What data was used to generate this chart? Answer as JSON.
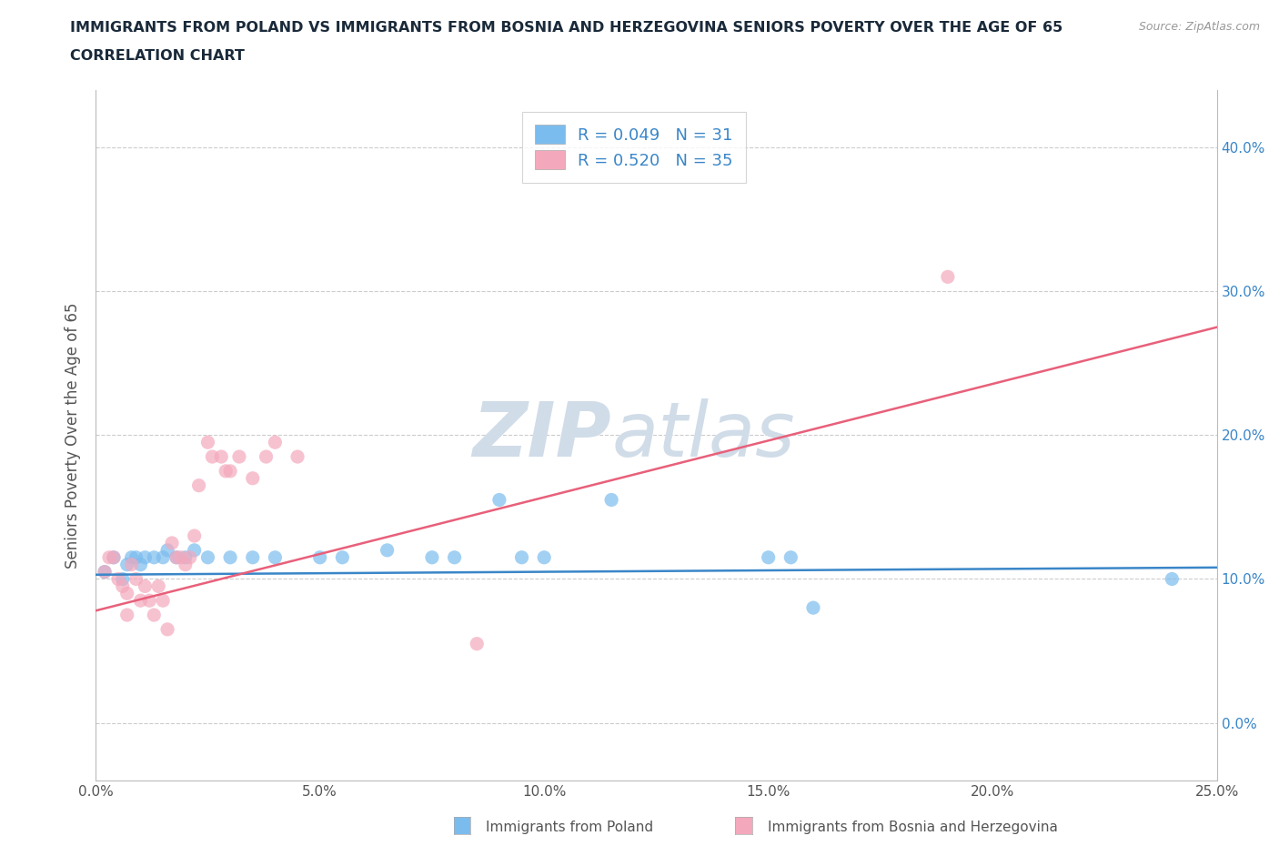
{
  "title_line1": "IMMIGRANTS FROM POLAND VS IMMIGRANTS FROM BOSNIA AND HERZEGOVINA SENIORS POVERTY OVER THE AGE OF 65",
  "title_line2": "CORRELATION CHART",
  "source": "Source: ZipAtlas.com",
  "ylabel": "Seniors Poverty Over the Age of 65",
  "xlim": [
    0.0,
    0.25
  ],
  "ylim": [
    -0.04,
    0.44
  ],
  "ytick_values": [
    0.0,
    0.1,
    0.2,
    0.3,
    0.4
  ],
  "ytick_labels": [
    "0.0%",
    "10.0%",
    "20.0%",
    "30.0%",
    "40.0%"
  ],
  "xtick_values": [
    0.0,
    0.05,
    0.1,
    0.15,
    0.2,
    0.25
  ],
  "xtick_labels": [
    "0.0%",
    "5.0%",
    "10.0%",
    "15.0%",
    "20.0%",
    "25.0%"
  ],
  "poland_color": "#7bbcee",
  "bosnia_color": "#f4a8bc",
  "poland_scatter": [
    [
      0.002,
      0.105
    ],
    [
      0.004,
      0.115
    ],
    [
      0.006,
      0.1
    ],
    [
      0.007,
      0.11
    ],
    [
      0.008,
      0.115
    ],
    [
      0.009,
      0.115
    ],
    [
      0.01,
      0.11
    ],
    [
      0.011,
      0.115
    ],
    [
      0.013,
      0.115
    ],
    [
      0.015,
      0.115
    ],
    [
      0.016,
      0.12
    ],
    [
      0.018,
      0.115
    ],
    [
      0.02,
      0.115
    ],
    [
      0.022,
      0.12
    ],
    [
      0.025,
      0.115
    ],
    [
      0.03,
      0.115
    ],
    [
      0.035,
      0.115
    ],
    [
      0.04,
      0.115
    ],
    [
      0.05,
      0.115
    ],
    [
      0.055,
      0.115
    ],
    [
      0.065,
      0.12
    ],
    [
      0.075,
      0.115
    ],
    [
      0.08,
      0.115
    ],
    [
      0.09,
      0.155
    ],
    [
      0.095,
      0.115
    ],
    [
      0.1,
      0.115
    ],
    [
      0.115,
      0.155
    ],
    [
      0.15,
      0.115
    ],
    [
      0.155,
      0.115
    ],
    [
      0.16,
      0.08
    ],
    [
      0.24,
      0.1
    ]
  ],
  "bosnia_scatter": [
    [
      0.002,
      0.105
    ],
    [
      0.003,
      0.115
    ],
    [
      0.004,
      0.115
    ],
    [
      0.005,
      0.1
    ],
    [
      0.006,
      0.095
    ],
    [
      0.007,
      0.09
    ],
    [
      0.007,
      0.075
    ],
    [
      0.008,
      0.11
    ],
    [
      0.009,
      0.1
    ],
    [
      0.01,
      0.085
    ],
    [
      0.011,
      0.095
    ],
    [
      0.012,
      0.085
    ],
    [
      0.013,
      0.075
    ],
    [
      0.014,
      0.095
    ],
    [
      0.015,
      0.085
    ],
    [
      0.016,
      0.065
    ],
    [
      0.017,
      0.125
    ],
    [
      0.018,
      0.115
    ],
    [
      0.019,
      0.115
    ],
    [
      0.02,
      0.11
    ],
    [
      0.021,
      0.115
    ],
    [
      0.022,
      0.13
    ],
    [
      0.023,
      0.165
    ],
    [
      0.025,
      0.195
    ],
    [
      0.026,
      0.185
    ],
    [
      0.028,
      0.185
    ],
    [
      0.029,
      0.175
    ],
    [
      0.03,
      0.175
    ],
    [
      0.032,
      0.185
    ],
    [
      0.035,
      0.17
    ],
    [
      0.038,
      0.185
    ],
    [
      0.04,
      0.195
    ],
    [
      0.045,
      0.185
    ],
    [
      0.19,
      0.31
    ],
    [
      0.085,
      0.055
    ]
  ],
  "poland_R": 0.049,
  "poland_N": 31,
  "bosnia_R": 0.52,
  "bosnia_N": 35,
  "poland_line_color": "#3a86c8",
  "bosnia_line_color": "#e8607a",
  "watermark_zip": "ZIP",
  "watermark_atlas": "atlas",
  "watermark_color": "#d0dce8",
  "title_color": "#1a2a3a",
  "axis_color": "#555555",
  "right_tick_color": "#3a86c8",
  "grid_color": "#cccccc",
  "legend_text_color": "#3a86c8"
}
